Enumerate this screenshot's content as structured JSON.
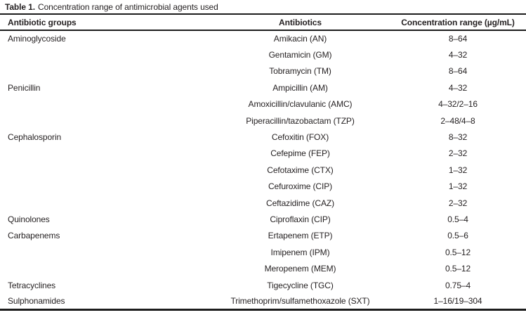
{
  "caption": {
    "label": "Table 1.",
    "text": "Concentration range of antimicrobial agents used"
  },
  "table": {
    "columns": [
      "Antibiotic groups",
      "Antibiotics",
      "Concentration range (µg/mL)"
    ],
    "rows": [
      {
        "group": "Aminoglycoside",
        "antibiotic": "Amikacin (AN)",
        "range": "8–64"
      },
      {
        "group": "",
        "antibiotic": "Gentamicin (GM)",
        "range": "4–32"
      },
      {
        "group": "",
        "antibiotic": "Tobramycin (TM)",
        "range": "8–64"
      },
      {
        "group": "Penicillin",
        "antibiotic": "Ampicillin (AM)",
        "range": "4–32"
      },
      {
        "group": "",
        "antibiotic": "Amoxicillin/clavulanic (AMC)",
        "range": "4–32/2–16"
      },
      {
        "group": "",
        "antibiotic": "Piperacillin/tazobactam (TZP)",
        "range": "2–48/4–8"
      },
      {
        "group": "Cephalosporin",
        "antibiotic": "Cefoxitin (FOX)",
        "range": "8–32"
      },
      {
        "group": "",
        "antibiotic": "Cefepime (FEP)",
        "range": "2–32"
      },
      {
        "group": "",
        "antibiotic": "Cefotaxime (CTX)",
        "range": "1–32"
      },
      {
        "group": "",
        "antibiotic": "Cefuroxime (CIP)",
        "range": "1–32"
      },
      {
        "group": "",
        "antibiotic": "Ceftazidime (CAZ)",
        "range": "2–32"
      },
      {
        "group": "Quinolones",
        "antibiotic": "Ciproflaxin (CIP)",
        "range": "0.5–4"
      },
      {
        "group": "Carbapenems",
        "antibiotic": "Ertapenem (ETP)",
        "range": "0.5–6"
      },
      {
        "group": "",
        "antibiotic": "Imipenem (IPM)",
        "range": "0.5–12"
      },
      {
        "group": "",
        "antibiotic": "Meropenem (MEM)",
        "range": "0.5–12"
      },
      {
        "group": "Tetracyclines",
        "antibiotic": "Tigecycline (TGC)",
        "range": "0.75–4"
      },
      {
        "group": "Sulphonamides",
        "antibiotic": "Trimethoprim/sulfamethoxazole (SXT)",
        "range": "1–16/19–304"
      }
    ]
  },
  "colors": {
    "text": "#231f20",
    "rule": "#1c1c1c",
    "background": "#ffffff"
  }
}
